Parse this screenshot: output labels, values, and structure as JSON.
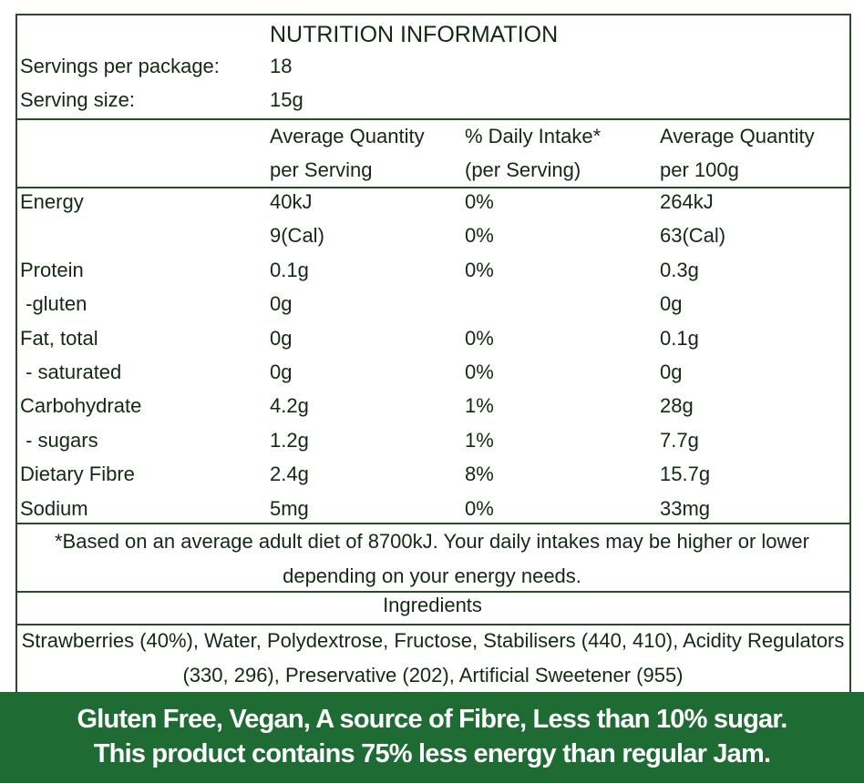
{
  "title": "NUTRITION INFORMATION",
  "servings": {
    "label": "Servings per package:",
    "value": "18"
  },
  "serving_size": {
    "label": "Serving size:",
    "value": "15g"
  },
  "header": [
    [
      "Average Quantity",
      "% Daily Intake*",
      "Average Quantity"
    ],
    [
      "per Serving",
      "(per Serving)",
      "per 100g"
    ]
  ],
  "rows": [
    [
      "Energy",
      "40kJ",
      "0%",
      "264kJ"
    ],
    [
      null,
      "9(Cal)",
      "0%",
      "63(Cal)"
    ],
    [
      "Protein",
      "0.1g",
      "0%",
      "0.3g"
    ],
    [
      " -gluten",
      "0g",
      null,
      "0g"
    ],
    [
      "Fat, total",
      "0g",
      "0%",
      "0.1g"
    ],
    [
      " - saturated",
      "0g",
      "0%",
      "0g"
    ],
    [
      "Carbohydrate",
      "4.2g",
      "1%",
      "28g"
    ],
    [
      " - sugars",
      "1.2g",
      "1%",
      "7.7g"
    ],
    [
      "Dietary Fibre",
      "2.4g",
      "8%",
      "15.7g"
    ],
    [
      "Sodium",
      "5mg",
      "0%",
      "33mg"
    ]
  ],
  "footnote": "*Based on an average adult diet of 8700kJ. Your daily intakes may be higher or lower depending on your energy needs.",
  "ingredients": {
    "heading": "Ingredients",
    "text": "Strawberries (40%), Water, Polydextrose, Fructose, Stabilisers (440, 410), Acidity Regulators (330, 296), Preservative (202), Artificial Sweetener (955)"
  },
  "banner": [
    "Gluten Free, Vegan, A source of Fibre, Less than 10% sugar.",
    "This product contains 75% less energy than regular Jam."
  ]
}
